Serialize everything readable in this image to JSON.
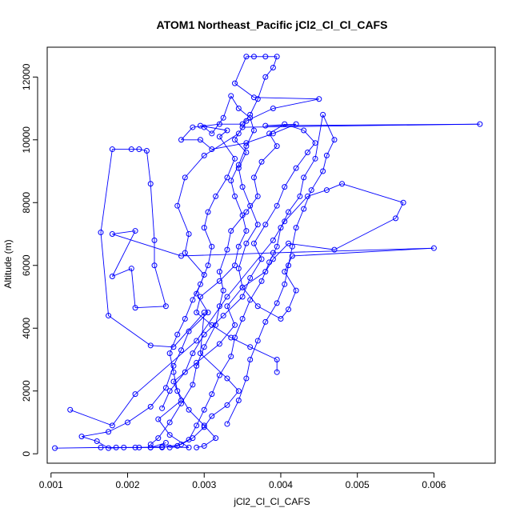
{
  "chart_data": {
    "type": "scatter",
    "title": "ATOM1 Northeast_Pacific jCl2_Cl_Cl_CAFS",
    "xlabel": "jCl2_Cl_Cl_CAFS",
    "ylabel": "Altitude (m)",
    "xlim": [
      0.00095,
      0.0068
    ],
    "ylim": [
      -300,
      12950
    ],
    "x_ticks": [
      0.001,
      0.002,
      0.003,
      0.004,
      0.005,
      0.006
    ],
    "x_tick_labels": [
      "0.001",
      "0.002",
      "0.003",
      "0.004",
      "0.005",
      "0.006"
    ],
    "y_ticks": [
      0,
      2000,
      4000,
      6000,
      8000,
      10000,
      12000
    ],
    "y_tick_labels": [
      "0",
      "2000",
      "4000",
      "6000",
      "8000",
      "10000",
      "12000"
    ],
    "grid": false,
    "legend": "none",
    "marker": "open-circle",
    "connected": true,
    "colors": {
      "series": "#0000ff",
      "axis": "#000000",
      "background": "#ffffff"
    },
    "series": [
      {
        "values": [
          [
            0.00105,
            180
          ],
          [
            0.00165,
            200
          ],
          [
            0.00185,
            200
          ],
          [
            0.00215,
            200
          ],
          [
            0.00245,
            220
          ],
          [
            0.0028,
            200
          ],
          [
            0.00255,
            600
          ],
          [
            0.0024,
            1100
          ],
          [
            0.0027,
            1700
          ],
          [
            0.0026,
            2300
          ],
          [
            0.0029,
            2900
          ],
          [
            0.0032,
            3500
          ],
          [
            0.0034,
            4100
          ],
          [
            0.0033,
            4700
          ],
          [
            0.0035,
            5300
          ],
          [
            0.00345,
            5900
          ],
          [
            0.00355,
            6700
          ],
          [
            0.0037,
            7300
          ],
          [
            0.0036,
            7900
          ],
          [
            0.0035,
            8500
          ],
          [
            0.00345,
            9100
          ],
          [
            0.00355,
            9600
          ],
          [
            0.0034,
            10000
          ],
          [
            0.0035,
            10400
          ],
          [
            0.0066,
            10500
          ],
          [
            0.0038,
            10450
          ],
          [
            0.0042,
            10500
          ],
          [
            0.0039,
            10200
          ],
          [
            0.00355,
            9900
          ],
          [
            0.0031,
            9700
          ],
          [
            0.00295,
            10000
          ],
          [
            0.0027,
            10000
          ],
          [
            0.00285,
            10400
          ],
          [
            0.0032,
            10500
          ],
          [
            0.0035,
            10500
          ],
          [
            0.0036,
            10800
          ],
          [
            0.0037,
            11300
          ],
          [
            0.0038,
            12000
          ],
          [
            0.0039,
            12300
          ],
          [
            0.00395,
            12650
          ],
          [
            0.0038,
            12650
          ],
          [
            0.00365,
            12650
          ],
          [
            0.00355,
            12650
          ],
          [
            0.0034,
            11800
          ],
          [
            0.00365,
            11350
          ],
          [
            0.0045,
            11300
          ],
          [
            0.0039,
            11000
          ],
          [
            0.00355,
            10600
          ],
          [
            0.00345,
            10200
          ],
          [
            0.003,
            9500
          ],
          [
            0.00275,
            8800
          ],
          [
            0.00265,
            7900
          ],
          [
            0.0028,
            7000
          ],
          [
            0.00275,
            6400
          ],
          [
            0.003,
            5700
          ],
          [
            0.0029,
            5100
          ],
          [
            0.00305,
            4500
          ],
          [
            0.0028,
            3900
          ],
          [
            0.0027,
            3300
          ],
          [
            0.0026,
            2800
          ],
          [
            0.0025,
            2100
          ],
          [
            0.0023,
            1500
          ],
          [
            0.002,
            1000
          ],
          [
            0.00175,
            700
          ],
          [
            0.0014,
            550
          ],
          [
            0.0016,
            400
          ],
          [
            0.00175,
            180
          ],
          [
            0.00195,
            200
          ],
          [
            0.0021,
            200
          ],
          [
            0.0023,
            200
          ],
          [
            0.0025,
            350
          ]
        ]
      },
      {
        "values": [
          [
            0.00125,
            1400
          ],
          [
            0.0018,
            900
          ],
          [
            0.0021,
            1900
          ],
          [
            0.0029,
            3600
          ],
          [
            0.0033,
            5000
          ],
          [
            0.0039,
            6800
          ],
          [
            0.00405,
            7400
          ],
          [
            0.00435,
            8200
          ],
          [
            0.0046,
            8400
          ],
          [
            0.0048,
            8600
          ],
          [
            0.0056,
            8000
          ],
          [
            0.0055,
            7500
          ],
          [
            0.0047,
            6500
          ],
          [
            0.0041,
            6700
          ],
          [
            0.0039,
            6200
          ],
          [
            0.0038,
            5800
          ],
          [
            0.0035,
            5300
          ],
          [
            0.0037,
            4700
          ],
          [
            0.004,
            4300
          ],
          [
            0.0041,
            4600
          ],
          [
            0.0042,
            5200
          ],
          [
            0.00405,
            5800
          ],
          [
            0.00415,
            6300
          ],
          [
            0.006,
            6550
          ],
          [
            0.0039,
            6400
          ],
          [
            0.0027,
            6300
          ],
          [
            0.0018,
            7000
          ],
          [
            0.0021,
            7100
          ],
          [
            0.0018,
            5650
          ],
          [
            0.00205,
            5900
          ],
          [
            0.0021,
            4650
          ],
          [
            0.0025,
            4700
          ],
          [
            0.00235,
            6000
          ],
          [
            0.00235,
            6800
          ],
          [
            0.0023,
            8600
          ],
          [
            0.00225,
            9650
          ],
          [
            0.00215,
            9700
          ],
          [
            0.00205,
            9700
          ],
          [
            0.0018,
            9700
          ],
          [
            0.00165,
            7050
          ],
          [
            0.00175,
            4400
          ],
          [
            0.0023,
            3450
          ],
          [
            0.0026,
            3400
          ],
          [
            0.003,
            4500
          ],
          [
            0.00295,
            3200
          ],
          [
            0.0033,
            2400
          ],
          [
            0.00345,
            2000
          ],
          [
            0.0033,
            1550
          ],
          [
            0.0031,
            1200
          ],
          [
            0.003,
            850
          ],
          [
            0.00285,
            500
          ],
          [
            0.0027,
            300
          ],
          [
            0.00245,
            200
          ],
          [
            0.0023,
            200
          ]
        ]
      },
      {
        "values": [
          [
            0.00245,
            1450
          ],
          [
            0.00255,
            2000
          ],
          [
            0.00275,
            2600
          ],
          [
            0.00285,
            3200
          ],
          [
            0.003,
            3800
          ],
          [
            0.00325,
            4400
          ],
          [
            0.0035,
            5000
          ],
          [
            0.0036,
            5600
          ],
          [
            0.00375,
            6200
          ],
          [
            0.00365,
            6700
          ],
          [
            0.0038,
            7300
          ],
          [
            0.00395,
            7900
          ],
          [
            0.00405,
            8500
          ],
          [
            0.0042,
            9100
          ],
          [
            0.00435,
            9600
          ],
          [
            0.00445,
            9900
          ],
          [
            0.0043,
            10300
          ],
          [
            0.00405,
            10500
          ],
          [
            0.00385,
            10200
          ],
          [
            0.00395,
            9800
          ],
          [
            0.00375,
            9300
          ],
          [
            0.00365,
            8800
          ],
          [
            0.0037,
            8200
          ],
          [
            0.00355,
            7700
          ],
          [
            0.00335,
            7100
          ],
          [
            0.0033,
            6500
          ],
          [
            0.0032,
            5800
          ],
          [
            0.00325,
            5200
          ],
          [
            0.0032,
            4700
          ],
          [
            0.00315,
            4100
          ],
          [
            0.003,
            3400
          ],
          [
            0.0029,
            2800
          ],
          [
            0.00285,
            2200
          ],
          [
            0.0027,
            1600
          ],
          [
            0.00255,
            1000
          ],
          [
            0.0024,
            500
          ],
          [
            0.0023,
            300
          ]
        ]
      },
      {
        "values": [
          [
            0.0033,
            950
          ],
          [
            0.00345,
            1700
          ],
          [
            0.00355,
            2400
          ],
          [
            0.0036,
            3000
          ],
          [
            0.0037,
            3600
          ],
          [
            0.0038,
            4200
          ],
          [
            0.00395,
            4800
          ],
          [
            0.00405,
            5400
          ],
          [
            0.0041,
            6000
          ],
          [
            0.00415,
            6600
          ],
          [
            0.0042,
            7200
          ],
          [
            0.0043,
            7800
          ],
          [
            0.0044,
            8400
          ],
          [
            0.00455,
            9000
          ],
          [
            0.0046,
            9500
          ],
          [
            0.0047,
            10000
          ],
          [
            0.00455,
            10800
          ],
          [
            0.00445,
            9400
          ],
          [
            0.0043,
            8800
          ],
          [
            0.00425,
            8200
          ],
          [
            0.0041,
            7700
          ],
          [
            0.004,
            7200
          ],
          [
            0.00395,
            6600
          ],
          [
            0.00385,
            6100
          ],
          [
            0.00375,
            5500
          ],
          [
            0.0036,
            4900
          ],
          [
            0.0035,
            4300
          ],
          [
            0.0034,
            3700
          ],
          [
            0.00335,
            3100
          ],
          [
            0.0032,
            2500
          ],
          [
            0.0031,
            1900
          ],
          [
            0.003,
            1400
          ],
          [
            0.0029,
            900
          ],
          [
            0.0028,
            450
          ],
          [
            0.00265,
            250
          ],
          [
            0.00255,
            200
          ]
        ]
      },
      {
        "values": [
          [
            0.00395,
            2600
          ],
          [
            0.00395,
            3000
          ],
          [
            0.0036,
            3400
          ],
          [
            0.00335,
            3700
          ],
          [
            0.0031,
            4100
          ],
          [
            0.0029,
            4500
          ],
          [
            0.00295,
            5000
          ],
          [
            0.0032,
            5500
          ],
          [
            0.0034,
            6000
          ],
          [
            0.00345,
            6600
          ],
          [
            0.00355,
            7100
          ],
          [
            0.0035,
            7600
          ],
          [
            0.0034,
            8200
          ],
          [
            0.00335,
            8700
          ],
          [
            0.00345,
            9200
          ],
          [
            0.00355,
            9800
          ],
          [
            0.00365,
            10300
          ],
          [
            0.0036,
            10700
          ],
          [
            0.00345,
            11000
          ],
          [
            0.00335,
            11400
          ],
          [
            0.00325,
            10700
          ],
          [
            0.0031,
            10200
          ],
          [
            0.003,
            10400
          ],
          [
            0.00295,
            10450
          ],
          [
            0.0033,
            10300
          ],
          [
            0.0032,
            10100
          ],
          [
            0.0034,
            9400
          ],
          [
            0.0033,
            8800
          ],
          [
            0.00315,
            8200
          ],
          [
            0.00305,
            7700
          ],
          [
            0.003,
            7200
          ],
          [
            0.0031,
            6600
          ],
          [
            0.00305,
            6000
          ],
          [
            0.00295,
            5400
          ],
          [
            0.00285,
            4900
          ],
          [
            0.00275,
            4300
          ],
          [
            0.00265,
            3800
          ],
          [
            0.00255,
            3200
          ],
          [
            0.0026,
            2600
          ],
          [
            0.00265,
            2000
          ],
          [
            0.0028,
            1400
          ],
          [
            0.003,
            900
          ],
          [
            0.00315,
            500
          ],
          [
            0.003,
            250
          ],
          [
            0.0029,
            200
          ]
        ]
      }
    ]
  }
}
